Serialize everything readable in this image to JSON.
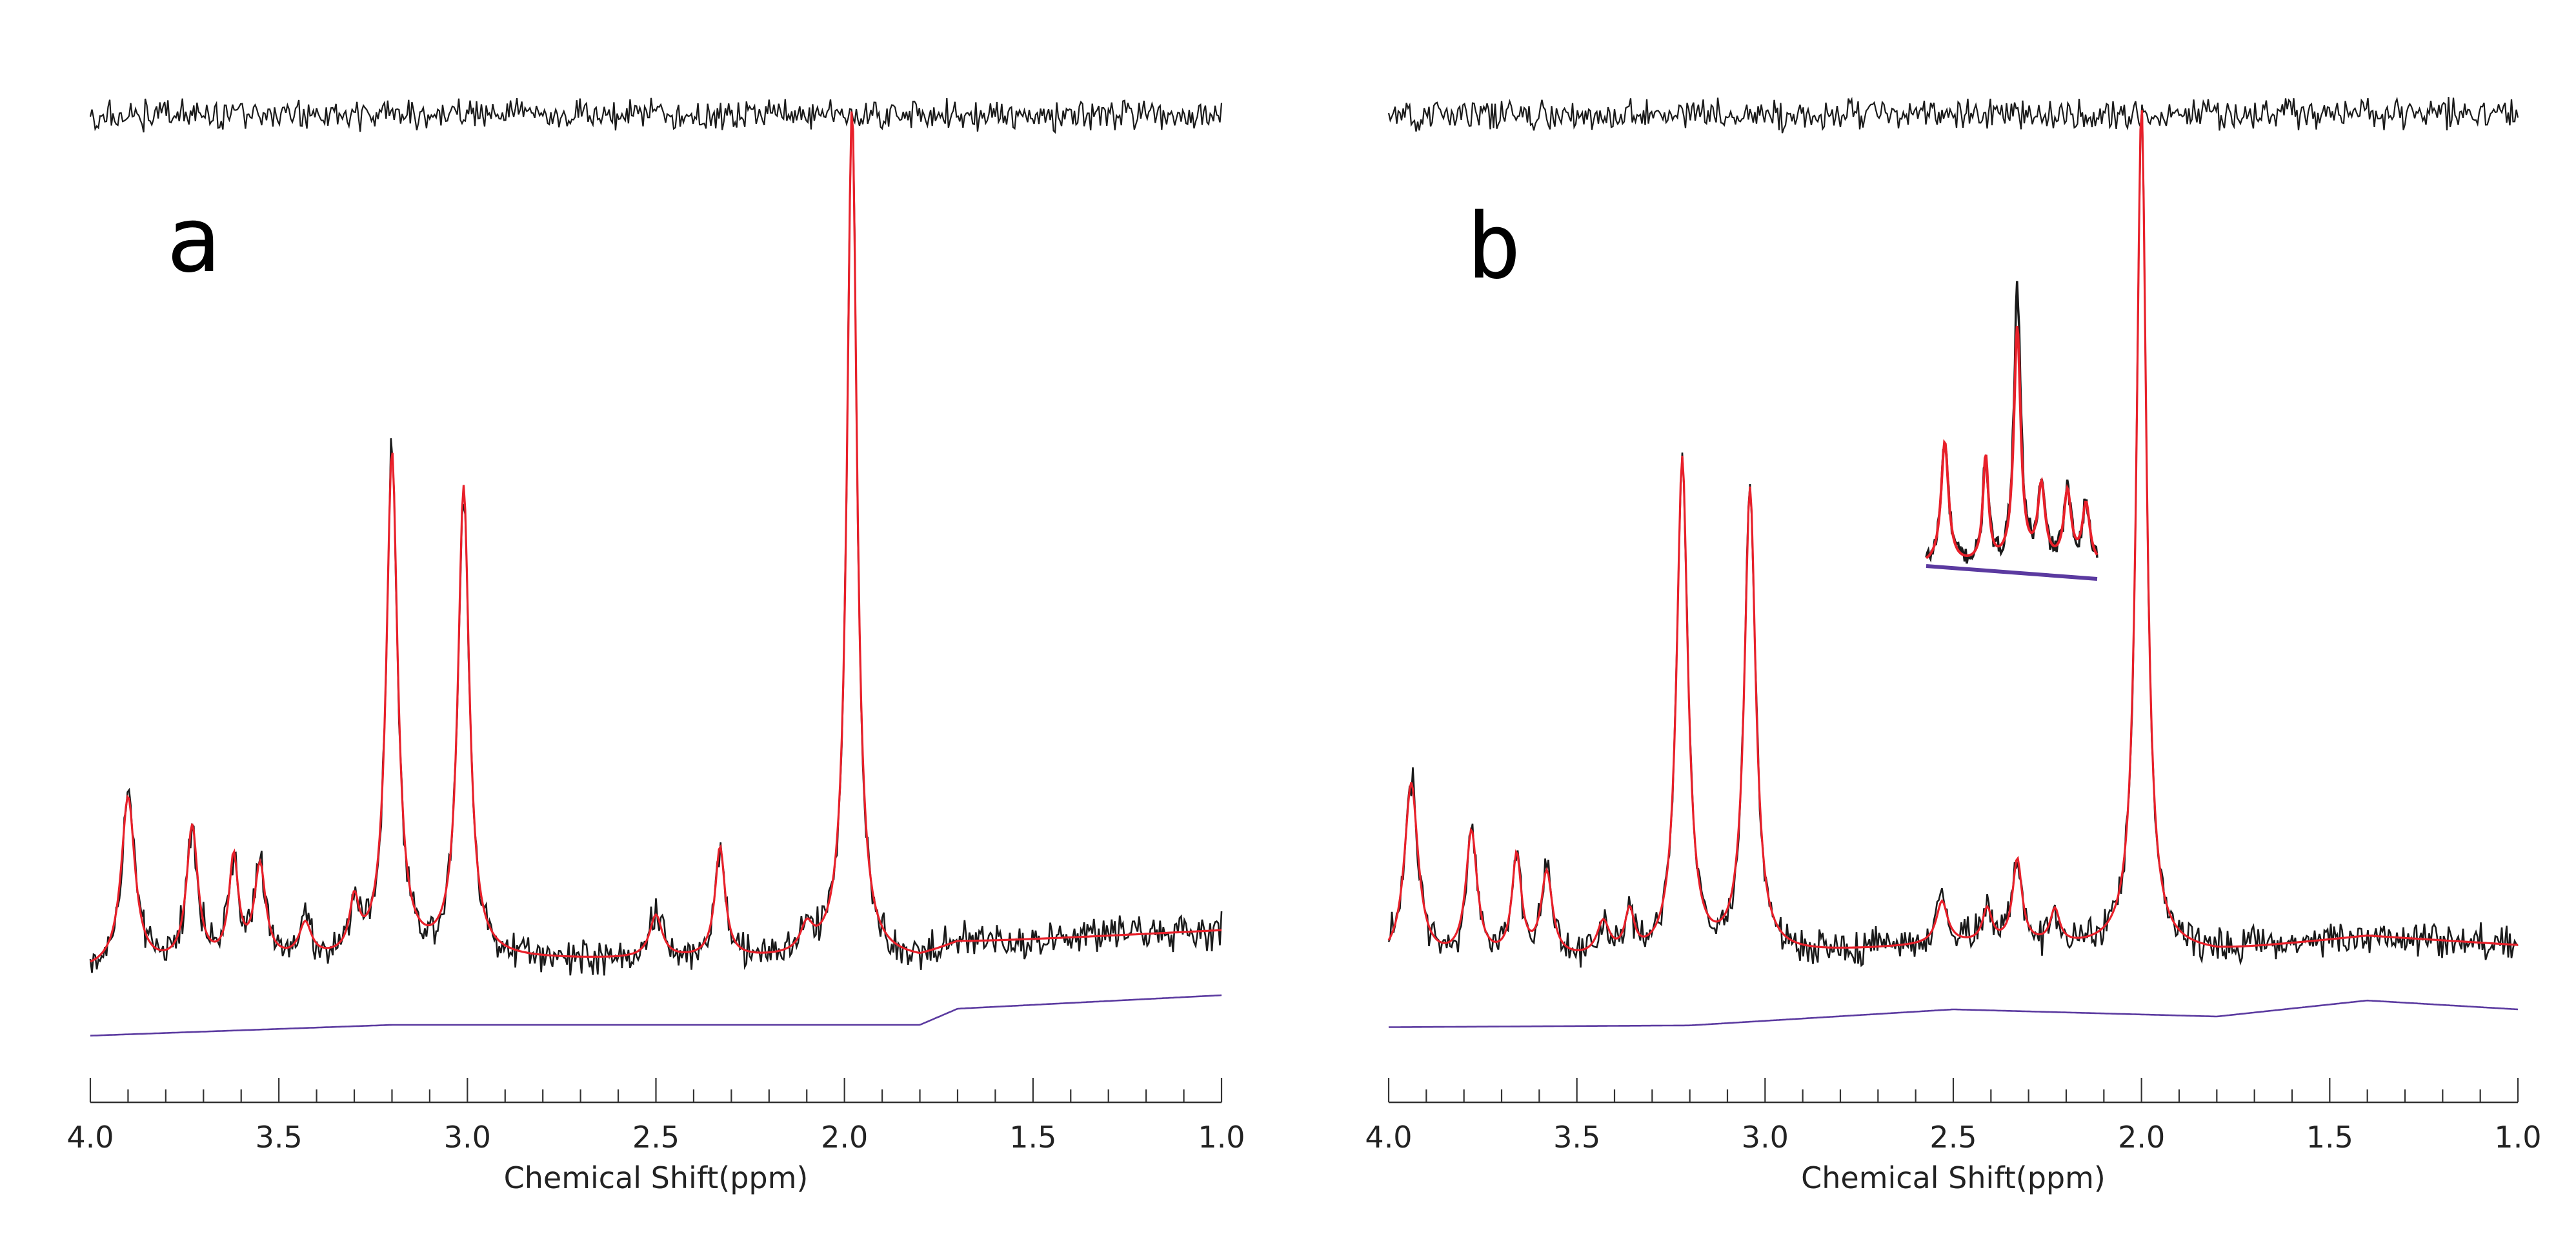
{
  "chart_data": [
    {
      "type": "line",
      "panel_label": "a",
      "xlabel": "Chemical Shift(ppm)",
      "ylabel": "",
      "title": "",
      "xlim": [
        4.0,
        1.0
      ],
      "x_reversed": true,
      "grid": false,
      "legend": "none",
      "ticks": [
        "4.0",
        "3.5",
        "3.0",
        "2.5",
        "2.0",
        "1.5",
        "1.0"
      ],
      "colors": {
        "data": "#1a1a1a",
        "fit": "#e8202a",
        "baseline": "#5b3aa0",
        "residual": "#1a1a1a"
      },
      "peaks": [
        {
          "ppm": 3.9,
          "height": 0.2,
          "width": 0.022
        },
        {
          "ppm": 3.73,
          "height": 0.16,
          "width": 0.018
        },
        {
          "ppm": 3.62,
          "height": 0.12,
          "width": 0.015
        },
        {
          "ppm": 3.55,
          "height": 0.11,
          "width": 0.018
        },
        {
          "ppm": 3.43,
          "height": 0.04,
          "width": 0.02
        },
        {
          "ppm": 3.3,
          "height": 0.06,
          "width": 0.015
        },
        {
          "ppm": 3.2,
          "height": 0.59,
          "width": 0.018
        },
        {
          "ppm": 3.01,
          "height": 0.55,
          "width": 0.018
        },
        {
          "ppm": 2.5,
          "height": 0.05,
          "width": 0.02
        },
        {
          "ppm": 2.33,
          "height": 0.13,
          "width": 0.016
        },
        {
          "ppm": 2.1,
          "height": 0.03,
          "width": 0.02
        },
        {
          "ppm": 1.98,
          "height": 1.0,
          "width": 0.016
        }
      ],
      "baseline_points": [
        [
          4.0,
          0.0
        ],
        [
          3.2,
          0.012
        ],
        [
          2.5,
          0.012
        ],
        [
          1.8,
          0.012
        ],
        [
          1.7,
          0.03
        ],
        [
          1.0,
          0.045
        ]
      ],
      "noise_level": 0.012
    },
    {
      "type": "line",
      "panel_label": "b",
      "xlabel": "Chemical Shift(ppm)",
      "ylabel": "",
      "title": "",
      "xlim": [
        4.0,
        1.0
      ],
      "x_reversed": true,
      "grid": false,
      "legend": "none",
      "ticks": [
        "4.0",
        "3.5",
        "3.0",
        "2.5",
        "2.0",
        "1.5",
        "1.0"
      ],
      "colors": {
        "data": "#1a1a1a",
        "fit": "#e8202a",
        "baseline": "#5b3aa0",
        "residual": "#1a1a1a"
      },
      "peaks": [
        {
          "ppm": 3.94,
          "height": 0.21,
          "width": 0.022
        },
        {
          "ppm": 3.78,
          "height": 0.15,
          "width": 0.018
        },
        {
          "ppm": 3.66,
          "height": 0.12,
          "width": 0.015
        },
        {
          "ppm": 3.58,
          "height": 0.1,
          "width": 0.018
        },
        {
          "ppm": 3.43,
          "height": 0.04,
          "width": 0.02
        },
        {
          "ppm": 3.36,
          "height": 0.05,
          "width": 0.015
        },
        {
          "ppm": 3.22,
          "height": 0.59,
          "width": 0.018
        },
        {
          "ppm": 3.04,
          "height": 0.55,
          "width": 0.018
        },
        {
          "ppm": 2.53,
          "height": 0.05,
          "width": 0.018
        },
        {
          "ppm": 2.41,
          "height": 0.04,
          "width": 0.015
        },
        {
          "ppm": 2.33,
          "height": 0.1,
          "width": 0.015
        },
        {
          "ppm": 2.23,
          "height": 0.04,
          "width": 0.015
        },
        {
          "ppm": 2.0,
          "height": 1.0,
          "width": 0.016
        }
      ],
      "baseline_points": [
        [
          4.0,
          0.0
        ],
        [
          3.2,
          0.002
        ],
        [
          2.5,
          0.02
        ],
        [
          1.8,
          0.012
        ],
        [
          1.4,
          0.03
        ],
        [
          1.0,
          0.02
        ]
      ],
      "noise_level": 0.012,
      "inset": {
        "x_range": [
          2.58,
          2.12
        ],
        "description_peaks": [
          2.53,
          2.42,
          2.33,
          2.22
        ]
      }
    }
  ]
}
